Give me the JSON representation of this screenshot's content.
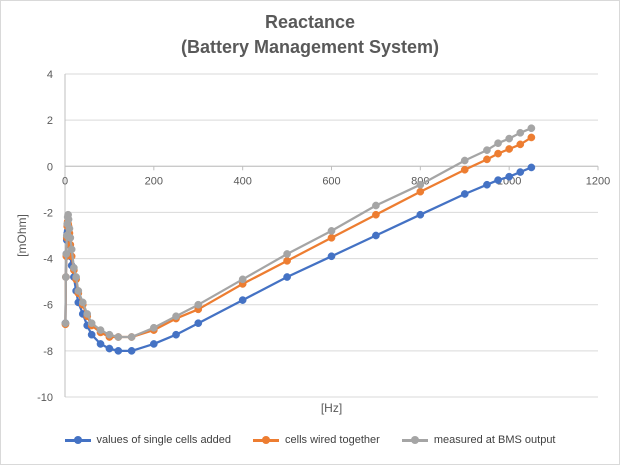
{
  "chart_data": {
    "type": "line",
    "title": "Reactance",
    "subtitle": "(Battery Management System)",
    "xlabel": "[Hz]",
    "ylabel": "[mOhm]",
    "xlim": [
      0,
      1200
    ],
    "ylim": [
      -10,
      4
    ],
    "xticks": [
      0,
      200,
      400,
      600,
      800,
      1000,
      1200
    ],
    "yticks": [
      -10,
      -8,
      -6,
      -4,
      -2,
      0,
      2,
      4
    ],
    "grid": "horizontal",
    "legend": "bottom",
    "series": [
      {
        "name": "values of single cells added",
        "color": "#4472c4",
        "points": [
          [
            1,
            -6.8
          ],
          [
            2,
            -4.8
          ],
          [
            3,
            -3.8
          ],
          [
            4,
            -3.2
          ],
          [
            5,
            -2.9
          ],
          [
            6,
            -2.8
          ],
          [
            7,
            -2.9
          ],
          [
            8,
            -3.0
          ],
          [
            10,
            -3.4
          ],
          [
            12,
            -3.9
          ],
          [
            15,
            -4.3
          ],
          [
            20,
            -4.8
          ],
          [
            25,
            -5.4
          ],
          [
            30,
            -5.9
          ],
          [
            40,
            -6.4
          ],
          [
            50,
            -6.9
          ],
          [
            60,
            -7.3
          ],
          [
            80,
            -7.7
          ],
          [
            100,
            -7.9
          ],
          [
            120,
            -8.0
          ],
          [
            150,
            -8.0
          ],
          [
            200,
            -7.7
          ],
          [
            250,
            -7.3
          ],
          [
            300,
            -6.8
          ],
          [
            400,
            -5.8
          ],
          [
            500,
            -4.8
          ],
          [
            600,
            -3.9
          ],
          [
            700,
            -3.0
          ],
          [
            800,
            -2.1
          ],
          [
            900,
            -1.2
          ],
          [
            950,
            -0.8
          ],
          [
            975,
            -0.6
          ],
          [
            1000,
            -0.45
          ],
          [
            1025,
            -0.25
          ],
          [
            1050,
            -0.05
          ]
        ]
      },
      {
        "name": "cells wired together",
        "color": "#ed7d31",
        "points": [
          [
            1,
            -6.85
          ],
          [
            2,
            -4.8
          ],
          [
            3,
            -3.9
          ],
          [
            4,
            -3.1
          ],
          [
            5,
            -2.6
          ],
          [
            6,
            -2.4
          ],
          [
            7,
            -2.5
          ],
          [
            8,
            -2.6
          ],
          [
            10,
            -2.9
          ],
          [
            12,
            -3.4
          ],
          [
            15,
            -3.9
          ],
          [
            20,
            -4.5
          ],
          [
            25,
            -4.9
          ],
          [
            30,
            -5.5
          ],
          [
            40,
            -6.0
          ],
          [
            50,
            -6.5
          ],
          [
            60,
            -6.9
          ],
          [
            80,
            -7.2
          ],
          [
            100,
            -7.4
          ],
          [
            120,
            -7.4
          ],
          [
            150,
            -7.4
          ],
          [
            200,
            -7.1
          ],
          [
            250,
            -6.6
          ],
          [
            300,
            -6.2
          ],
          [
            400,
            -5.1
          ],
          [
            500,
            -4.1
          ],
          [
            600,
            -3.1
          ],
          [
            700,
            -2.1
          ],
          [
            800,
            -1.1
          ],
          [
            900,
            -0.15
          ],
          [
            950,
            0.3
          ],
          [
            975,
            0.55
          ],
          [
            1000,
            0.75
          ],
          [
            1025,
            0.95
          ],
          [
            1050,
            1.25
          ]
        ]
      },
      {
        "name": "measured at BMS output",
        "color": "#a5a5a5",
        "points": [
          [
            1,
            -6.8
          ],
          [
            2,
            -4.8
          ],
          [
            3,
            -3.8
          ],
          [
            4,
            -3.0
          ],
          [
            5,
            -2.5
          ],
          [
            6,
            -2.2
          ],
          [
            7,
            -2.1
          ],
          [
            8,
            -2.3
          ],
          [
            10,
            -2.7
          ],
          [
            12,
            -3.1
          ],
          [
            15,
            -3.6
          ],
          [
            20,
            -4.4
          ],
          [
            25,
            -4.8
          ],
          [
            30,
            -5.4
          ],
          [
            40,
            -5.9
          ],
          [
            50,
            -6.4
          ],
          [
            60,
            -6.8
          ],
          [
            80,
            -7.1
          ],
          [
            100,
            -7.3
          ],
          [
            120,
            -7.4
          ],
          [
            150,
            -7.4
          ],
          [
            200,
            -7.0
          ],
          [
            250,
            -6.5
          ],
          [
            300,
            -6.0
          ],
          [
            400,
            -4.9
          ],
          [
            500,
            -3.8
          ],
          [
            600,
            -2.8
          ],
          [
            700,
            -1.7
          ],
          [
            800,
            -0.8
          ],
          [
            900,
            0.25
          ],
          [
            950,
            0.7
          ],
          [
            975,
            1.0
          ],
          [
            1000,
            1.2
          ],
          [
            1025,
            1.45
          ],
          [
            1050,
            1.65
          ]
        ]
      }
    ]
  }
}
